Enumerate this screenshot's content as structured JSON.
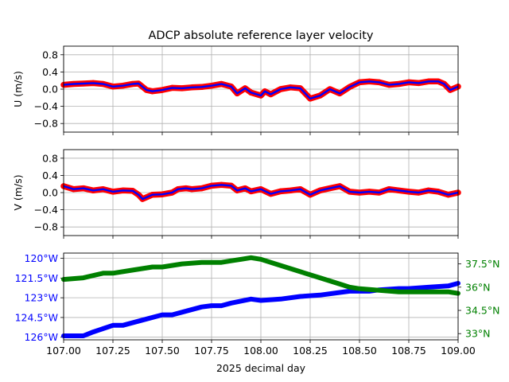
{
  "title": "ADCP absolute reference layer velocity",
  "chart_data": [
    {
      "type": "scatter",
      "panel": "top",
      "ylabel": "U (m/s)",
      "xlim": [
        107.0,
        109.0
      ],
      "ylim": [
        -1.0,
        1.0
      ],
      "yticks": [
        -0.8,
        -0.4,
        0.0,
        0.4,
        0.8
      ],
      "ytick_labels": [
        "−0.8",
        "−0.4",
        "0.0",
        "0.4",
        "0.8"
      ],
      "grid": true,
      "series": [
        {
          "style": "dots",
          "color": "#ff0000",
          "x": [
            107.0,
            107.05,
            107.1,
            107.15,
            107.2,
            107.25,
            107.3,
            107.35,
            107.38,
            107.42,
            107.45,
            107.5,
            107.55,
            107.6,
            107.65,
            107.7,
            107.75,
            107.8,
            107.85,
            107.88,
            107.92,
            107.95,
            108.0,
            108.02,
            108.05,
            108.1,
            108.15,
            108.2,
            108.25,
            108.3,
            108.35,
            108.4,
            108.45,
            108.5,
            108.55,
            108.6,
            108.65,
            108.7,
            108.75,
            108.8,
            108.85,
            108.9,
            108.93,
            108.96,
            109.0
          ],
          "y": [
            0.1,
            0.12,
            0.13,
            0.14,
            0.12,
            0.06,
            0.08,
            0.12,
            0.13,
            -0.02,
            -0.05,
            -0.02,
            0.03,
            0.02,
            0.04,
            0.05,
            0.08,
            0.12,
            0.06,
            -0.1,
            0.02,
            -0.08,
            -0.15,
            -0.05,
            -0.12,
            0.0,
            0.04,
            0.02,
            -0.22,
            -0.15,
            0.0,
            -0.1,
            0.05,
            0.16,
            0.18,
            0.16,
            0.1,
            0.12,
            0.16,
            0.14,
            0.18,
            0.18,
            0.12,
            -0.02,
            0.06
          ]
        },
        {
          "style": "line",
          "color": "#0000ff",
          "x": [
            107.0,
            107.05,
            107.1,
            107.15,
            107.2,
            107.25,
            107.3,
            107.35,
            107.38,
            107.42,
            107.45,
            107.5,
            107.55,
            107.6,
            107.65,
            107.7,
            107.75,
            107.8,
            107.85,
            107.88,
            107.92,
            107.95,
            108.0,
            108.02,
            108.05,
            108.1,
            108.15,
            108.2,
            108.25,
            108.3,
            108.35,
            108.4,
            108.45,
            108.5,
            108.55,
            108.6,
            108.65,
            108.7,
            108.75,
            108.8,
            108.85,
            108.9,
            108.93,
            108.96,
            109.0
          ],
          "y": [
            0.1,
            0.12,
            0.13,
            0.14,
            0.12,
            0.06,
            0.08,
            0.12,
            0.13,
            -0.02,
            -0.05,
            -0.02,
            0.03,
            0.02,
            0.04,
            0.05,
            0.08,
            0.12,
            0.06,
            -0.1,
            0.02,
            -0.08,
            -0.15,
            -0.05,
            -0.12,
            0.0,
            0.04,
            0.02,
            -0.22,
            -0.15,
            0.0,
            -0.1,
            0.05,
            0.16,
            0.18,
            0.16,
            0.1,
            0.12,
            0.16,
            0.14,
            0.18,
            0.18,
            0.12,
            -0.02,
            0.06
          ]
        }
      ]
    },
    {
      "type": "scatter",
      "panel": "middle",
      "ylabel": "V (m/s)",
      "xlim": [
        107.0,
        109.0
      ],
      "ylim": [
        -1.0,
        1.0
      ],
      "yticks": [
        -0.8,
        -0.4,
        0.0,
        0.4,
        0.8
      ],
      "ytick_labels": [
        "−0.8",
        "−0.4",
        "0.0",
        "0.4",
        "0.8"
      ],
      "grid": true,
      "series": [
        {
          "style": "dots",
          "color": "#ff0000",
          "x": [
            107.0,
            107.05,
            107.1,
            107.15,
            107.2,
            107.25,
            107.3,
            107.35,
            107.38,
            107.4,
            107.45,
            107.5,
            107.55,
            107.58,
            107.62,
            107.65,
            107.7,
            107.75,
            107.8,
            107.85,
            107.88,
            107.92,
            107.95,
            108.0,
            108.05,
            108.1,
            108.15,
            108.2,
            108.25,
            108.3,
            108.35,
            108.4,
            108.45,
            108.5,
            108.55,
            108.6,
            108.65,
            108.7,
            108.75,
            108.8,
            108.85,
            108.9,
            108.95,
            109.0
          ],
          "y": [
            0.15,
            0.08,
            0.1,
            0.05,
            0.08,
            0.02,
            0.05,
            0.04,
            -0.05,
            -0.15,
            -0.05,
            -0.04,
            0.0,
            0.08,
            0.1,
            0.08,
            0.1,
            0.16,
            0.18,
            0.16,
            0.05,
            0.1,
            0.03,
            0.08,
            -0.03,
            0.03,
            0.05,
            0.08,
            -0.05,
            0.05,
            0.1,
            0.15,
            0.02,
            0.0,
            0.02,
            0.0,
            0.08,
            0.05,
            0.02,
            0.0,
            0.05,
            0.02,
            -0.05,
            0.0
          ]
        },
        {
          "style": "line",
          "color": "#0000ff",
          "x": [
            107.0,
            107.05,
            107.1,
            107.15,
            107.2,
            107.25,
            107.3,
            107.35,
            107.38,
            107.4,
            107.45,
            107.5,
            107.55,
            107.58,
            107.62,
            107.65,
            107.7,
            107.75,
            107.8,
            107.85,
            107.88,
            107.92,
            107.95,
            108.0,
            108.05,
            108.1,
            108.15,
            108.2,
            108.25,
            108.3,
            108.35,
            108.4,
            108.45,
            108.5,
            108.55,
            108.6,
            108.65,
            108.7,
            108.75,
            108.8,
            108.85,
            108.9,
            108.95,
            109.0
          ],
          "y": [
            0.15,
            0.08,
            0.1,
            0.05,
            0.08,
            0.02,
            0.05,
            0.04,
            -0.05,
            -0.15,
            -0.05,
            -0.04,
            0.0,
            0.08,
            0.1,
            0.08,
            0.1,
            0.16,
            0.18,
            0.16,
            0.05,
            0.1,
            0.03,
            0.08,
            -0.03,
            0.03,
            0.05,
            0.08,
            -0.05,
            0.05,
            0.1,
            0.15,
            0.02,
            0.0,
            0.02,
            0.0,
            0.08,
            0.05,
            0.02,
            0.0,
            0.05,
            0.02,
            -0.05,
            0.0
          ]
        }
      ]
    },
    {
      "type": "line",
      "panel": "bottom",
      "xlabel": "2025 decimal day",
      "xlim": [
        107.0,
        109.0
      ],
      "xticks": [
        107.0,
        107.25,
        107.5,
        107.75,
        108.0,
        108.25,
        108.5,
        108.75,
        109.0
      ],
      "xtick_labels": [
        "107.00",
        "107.25",
        "107.50",
        "107.75",
        "108.00",
        "108.25",
        "108.50",
        "108.75",
        "109.00"
      ],
      "grid": true,
      "left_axis": {
        "color": "#0000ff",
        "ylim": [
          -126.2,
          -119.6
        ],
        "yticks": [
          -126,
          -124.5,
          -123,
          -121.5,
          -120
        ],
        "ytick_labels": [
          "126°W",
          "124.5°W",
          "123°W",
          "121.5°W",
          "120°W"
        ]
      },
      "right_axis": {
        "color": "#008000",
        "ylim": [
          32.6,
          38.2
        ],
        "yticks": [
          33,
          34.5,
          36,
          37.5
        ],
        "ytick_labels": [
          "33°N",
          "34.5°N",
          "36°N",
          "37.5°N"
        ]
      },
      "series": [
        {
          "axis": "left",
          "color": "#0000ff",
          "x": [
            107.0,
            107.1,
            107.15,
            107.25,
            107.3,
            107.4,
            107.5,
            107.55,
            107.6,
            107.7,
            107.75,
            107.8,
            107.85,
            107.95,
            108.0,
            108.1,
            108.2,
            108.3,
            108.4,
            108.45,
            108.55,
            108.6,
            108.7,
            108.75,
            108.85,
            108.95,
            109.0
          ],
          "y": [
            -125.9,
            -125.9,
            -125.6,
            -125.1,
            -125.1,
            -124.7,
            -124.3,
            -124.3,
            -124.1,
            -123.7,
            -123.6,
            -123.6,
            -123.4,
            -123.1,
            -123.2,
            -123.1,
            -122.9,
            -122.8,
            -122.6,
            -122.5,
            -122.5,
            -122.4,
            -122.3,
            -122.3,
            -122.2,
            -122.1,
            -121.9
          ]
        },
        {
          "axis": "right",
          "color": "#008000",
          "x": [
            107.0,
            107.1,
            107.2,
            107.25,
            107.35,
            107.45,
            107.5,
            107.6,
            107.7,
            107.8,
            107.85,
            107.9,
            107.95,
            108.0,
            108.1,
            108.2,
            108.3,
            108.4,
            108.45,
            108.5,
            108.6,
            108.7,
            108.8,
            108.9,
            108.95,
            109.0
          ],
          "y": [
            36.5,
            36.6,
            36.9,
            36.9,
            37.1,
            37.3,
            37.3,
            37.5,
            37.6,
            37.6,
            37.7,
            37.8,
            37.9,
            37.8,
            37.4,
            37.0,
            36.6,
            36.2,
            36.0,
            35.9,
            35.8,
            35.7,
            35.7,
            35.7,
            35.7,
            35.6
          ]
        }
      ]
    }
  ]
}
